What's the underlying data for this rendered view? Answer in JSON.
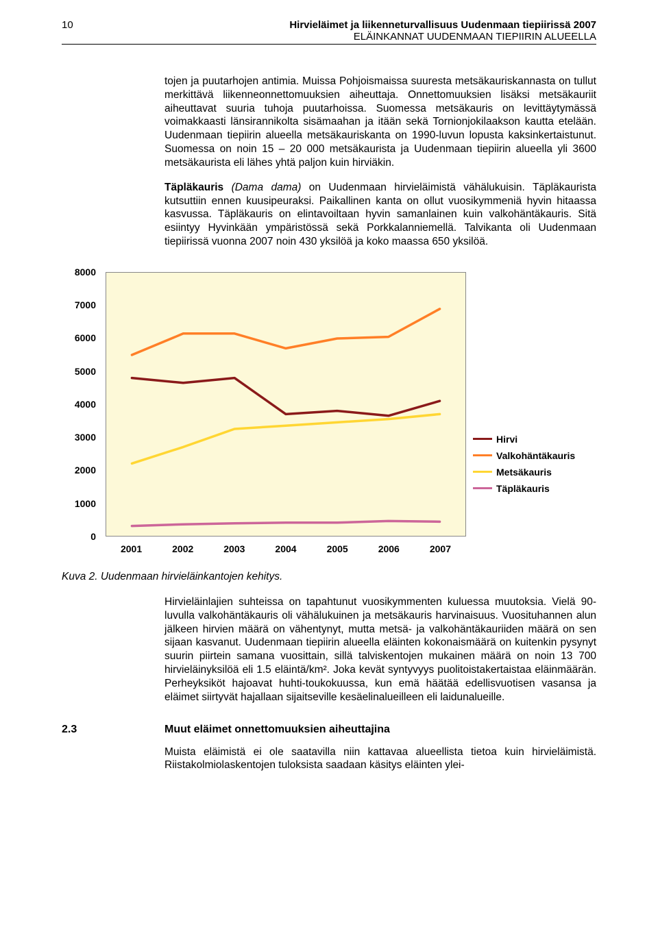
{
  "header": {
    "page_number": "10",
    "title1": "Hirvieläimet ja liikenneturvallisuus Uudenmaan tiepiirissä 2007",
    "title2": "ELÄINKANNAT UUDENMAAN TIEPIIRIN ALUEELLA"
  },
  "paragraphs": {
    "p1": "tojen ja puutarhojen antimia. Muissa Pohjoismaissa suuresta metsäkauriskannasta on tullut merkittävä liikenneonnettomuuksien aiheuttaja. Onnettomuuksien lisäksi metsäkauriit aiheuttavat suuria tuhoja puutarhoissa. Suomessa metsäkauris on levittäytymässä voimakkaasti länsirannikolta sisämaahan ja itään sekä Tornionjokilaakson kautta etelään. Uudenmaan tiepiirin alueella metsäkauriskanta on 1990-luvun lopusta kaksinkertaistunut. Suomessa on noin 15 – 20 000 metsäkaurista ja Uudenmaan tiepiirin alueella yli 3600 metsäkaurista eli lähes yhtä paljon kuin hirviäkin.",
    "p2_bold": "Täpläkauris",
    "p2_italic": "(Dama dama)",
    "p2_rest": " on Uudenmaan hirvieläimistä vähälukuisin. Täpläkaurista kutsuttiin ennen kuusipeuraksi. Paikallinen kanta on ollut vuosikymmeniä hyvin hitaassa kasvussa. Täpläkauris on elintavoiltaan hyvin samanlainen kuin valkohäntäkauris. Sitä esiintyy Hyvinkään ympäristössä sekä Porkkalanniemellä. Talvikanta oli Uudenmaan tiepiirissä vuonna 2007 noin 430 yksilöä ja koko maassa 650 yksilöä."
  },
  "chart": {
    "type": "line",
    "background_color": "#fdf9d8",
    "border_color": "#888888",
    "line_width": 3.5,
    "y": {
      "min": 0,
      "max": 8000,
      "step": 1000
    },
    "x": {
      "labels": [
        "2001",
        "2002",
        "2003",
        "2004",
        "2005",
        "2006",
        "2007"
      ]
    },
    "series": [
      {
        "name": "Hirvi",
        "color": "#8a1a1a",
        "values": [
          4800,
          4650,
          4800,
          3700,
          3800,
          3650,
          4100
        ]
      },
      {
        "name": "Valkohäntäkauris",
        "color": "#ff7f27",
        "values": [
          5500,
          6150,
          6150,
          5700,
          6000,
          6050,
          6900
        ]
      },
      {
        "name": "Metsäkauris",
        "color": "#ffd633",
        "values": [
          2200,
          2700,
          3250,
          3350,
          3450,
          3550,
          3700
        ]
      },
      {
        "name": "Täpläkauris",
        "color": "#cc6699",
        "values": [
          300,
          350,
          380,
          400,
          400,
          450,
          430
        ]
      }
    ],
    "legend": [
      {
        "label": "Hirvi",
        "color": "#8a1a1a"
      },
      {
        "label": "Valkohäntäkauris",
        "color": "#ff7f27"
      },
      {
        "label": "Metsäkauris",
        "color": "#ffd633"
      },
      {
        "label": "Täpläkauris",
        "color": "#cc6699"
      }
    ]
  },
  "caption": "Kuva 2. Uudenmaan hirvieläinkantojen kehitys.",
  "paragraphs2": {
    "p3": "Hirvieläinlajien suhteissa on tapahtunut vuosikymmenten kuluessa muutoksia. Vielä 90-luvulla valkohäntäkauris oli vähälukuinen ja metsäkauris harvinaisuus. Vuosituhannen alun jälkeen hirvien määrä on vähentynyt, mutta metsä- ja valkohäntäkauriiden määrä on sen sijaan kasvanut. Uudenmaan tiepiirin alueella eläinten kokonaismäärä on kuitenkin pysynyt suurin piirtein samana vuosittain, sillä talviskentojen mukainen määrä on noin 13 700 hirvieläinyksilöä eli 1.5 eläintä/km². Joka kevät syntyvyys puolitoistakertaistaa eläinmäärän. Perheyksiköt hajoavat huhti-toukokuussa, kun emä häätää edellisvuotisen vasansa ja eläimet siirtyvät hajallaan sijaitseville kesäelinalueilleen eli laidunalueille."
  },
  "section": {
    "num": "2.3",
    "title": "Muut eläimet onnettomuuksien aiheuttajina"
  },
  "paragraphs3": {
    "p4": "Muista eläimistä ei ole saatavilla niin kattavaa alueellista tietoa kuin hirvieläimistä. Riistakolmiolaskentojen tuloksista saadaan käsitys eläinten ylei-"
  }
}
